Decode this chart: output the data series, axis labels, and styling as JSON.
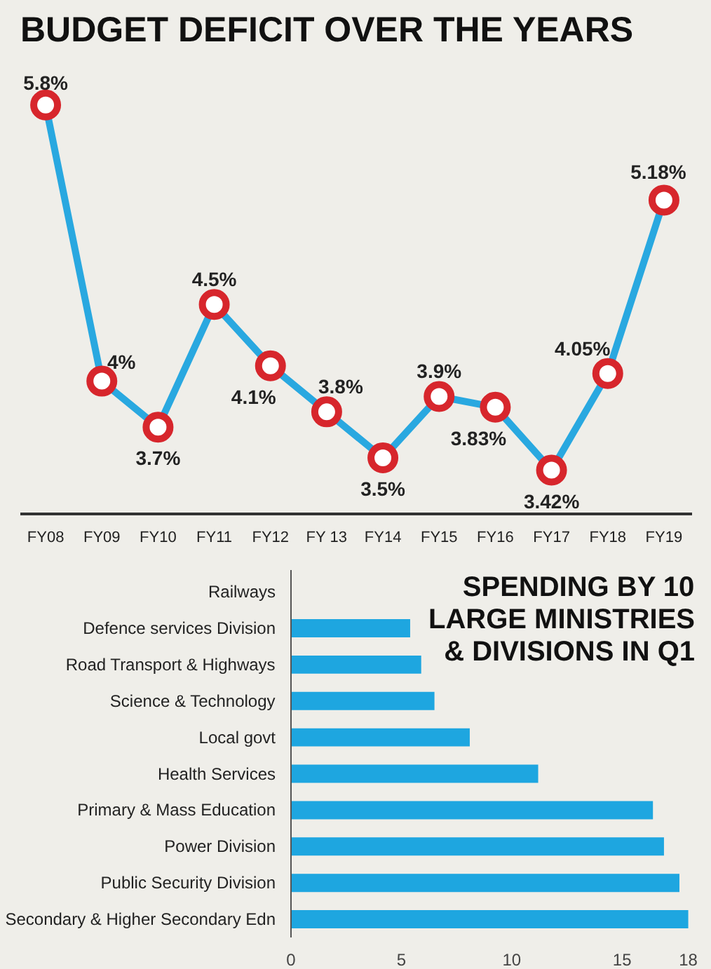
{
  "chart_data": [
    {
      "type": "line",
      "title": "BUDGET DEFICIT OVER THE YEARS",
      "categories": [
        "FY08",
        "FY09",
        "FY10",
        "FY11",
        "FY12",
        "FY 13",
        "FY14",
        "FY15",
        "FY16",
        "FY17",
        "FY18",
        "FY19"
      ],
      "series": [
        {
          "color": "#29a8e0",
          "values": [
            5.8,
            4,
            3.7,
            4.5,
            4.1,
            3.8,
            3.5,
            3.9,
            3.83,
            3.42,
            4.05,
            5.18
          ],
          "value_labels": [
            "5.8%",
            "4%",
            "3.7%",
            "4.5%",
            "4.1%",
            "3.8%",
            "3.5%",
            "3.9%",
            "3.83%",
            "3.42%",
            "4.05%",
            "5.18%"
          ]
        }
      ],
      "tick_labels": "x",
      "marker": "circle"
    },
    {
      "type": "bar",
      "orientation": "horizontal",
      "title": "SPENDING BY 10 LARGE MINISTRIES & DIVISIONS IN Q1",
      "categories": [
        "Railways",
        "Defence services Division",
        "Road Transport & Highways",
        "Science & Technology",
        "Local govt",
        "Health Services",
        "Primary & Mass Education",
        "Power Division",
        "Public Security Division",
        "Secondary & Higher Secondary Edn"
      ],
      "series": [
        {
          "color": "#1ea6e0",
          "values": [
            0,
            5.4,
            5.9,
            6.5,
            8.1,
            11.2,
            16.4,
            16.9,
            17.6,
            18
          ]
        }
      ],
      "xlim": [
        0,
        18.3
      ],
      "xticks": [
        0,
        5,
        10,
        15,
        18
      ]
    }
  ]
}
